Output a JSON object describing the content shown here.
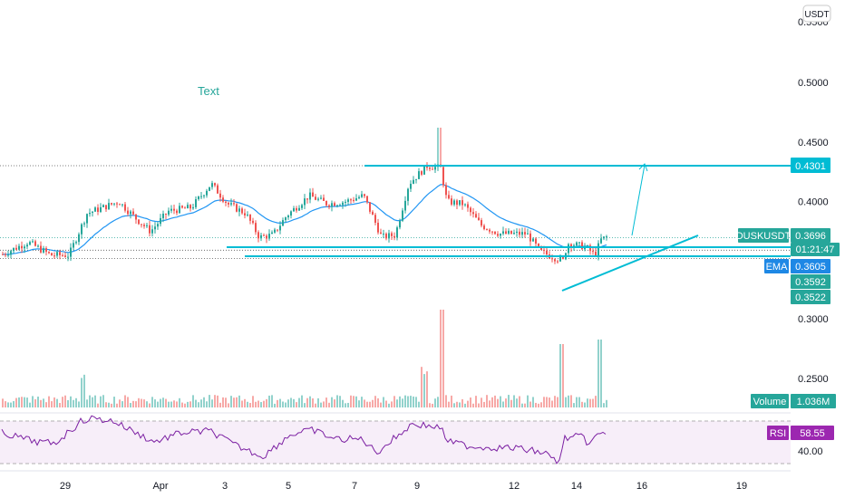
{
  "header": {
    "currency_label": "USDT"
  },
  "annotation_text": "Text",
  "chart_data": {
    "type": "candlestick",
    "symbol": "DUSKUSDT",
    "currency": "USDT",
    "price_axis": {
      "ticks": [
        "0.5500",
        "0.5000",
        "0.4500",
        "0.4000",
        "0.3000",
        "0.2500"
      ],
      "range": [
        0.2,
        0.56
      ]
    },
    "time_axis": {
      "ticks": [
        "29",
        "Apr",
        "3",
        "5",
        "7",
        "9",
        "12",
        "14",
        "16",
        "19"
      ]
    },
    "price_labels": [
      {
        "name": "level-1",
        "value": "0.4301",
        "color": "#00bcd4"
      },
      {
        "name": "last-price",
        "value": "0.3696",
        "symbol": "DUSKUSDT",
        "countdown": "01:21:47",
        "color": "#26a69a"
      },
      {
        "name": "ema",
        "value": "0.3605",
        "label": "EMA",
        "color": "#1e88e5"
      },
      {
        "name": "low-1",
        "value": "0.3592",
        "color": "#26a69a"
      },
      {
        "name": "low-2",
        "value": "0.3522",
        "color": "#26a69a"
      }
    ],
    "horizontal_levels": [
      0.4301,
      0.3592,
      0.3522
    ],
    "volume": {
      "label": "Volume",
      "value": "1.036M"
    },
    "rsi": {
      "label": "RSI",
      "value": "58.55",
      "level_labels": [
        "40.00"
      ],
      "band": [
        30,
        70
      ]
    },
    "colors": {
      "up": "#26a69a",
      "down": "#ef5350",
      "ema": "#2196f3",
      "rsi": "#7b1fa2",
      "lines": "#00bcd4"
    }
  }
}
